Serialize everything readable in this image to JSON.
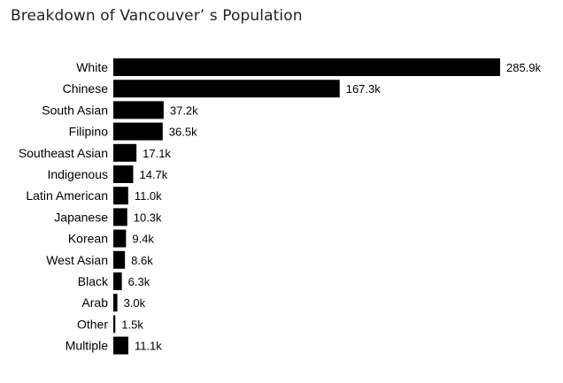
{
  "chart_data": {
    "type": "bar",
    "orientation": "horizontal",
    "title": "Breakdown of Vancouver’ s Population",
    "categories": [
      "White",
      "Chinese",
      "South Asian",
      "Filipino",
      "Southeast Asian",
      "Indigenous",
      "Latin American",
      "Japanese",
      "Korean",
      "West Asian",
      "Black",
      "Arab",
      "Other",
      "Multiple"
    ],
    "values": [
      285.9,
      167.3,
      37.2,
      36.5,
      17.1,
      14.7,
      11.0,
      10.3,
      9.4,
      8.6,
      6.3,
      3.0,
      1.5,
      11.1
    ],
    "value_labels": [
      "285.9k",
      "167.3k",
      "37.2k",
      "36.5k",
      "17.1k",
      "14.7k",
      "11.0k",
      "10.3k",
      "9.4k",
      "8.6k",
      "6.3k",
      "3.0k",
      "1.5k",
      "11.1k"
    ],
    "xlabel": "",
    "ylabel": "",
    "xlim": [
      0,
      285.9
    ],
    "grid": false,
    "legend": "none",
    "bar_color": "#000000"
  }
}
